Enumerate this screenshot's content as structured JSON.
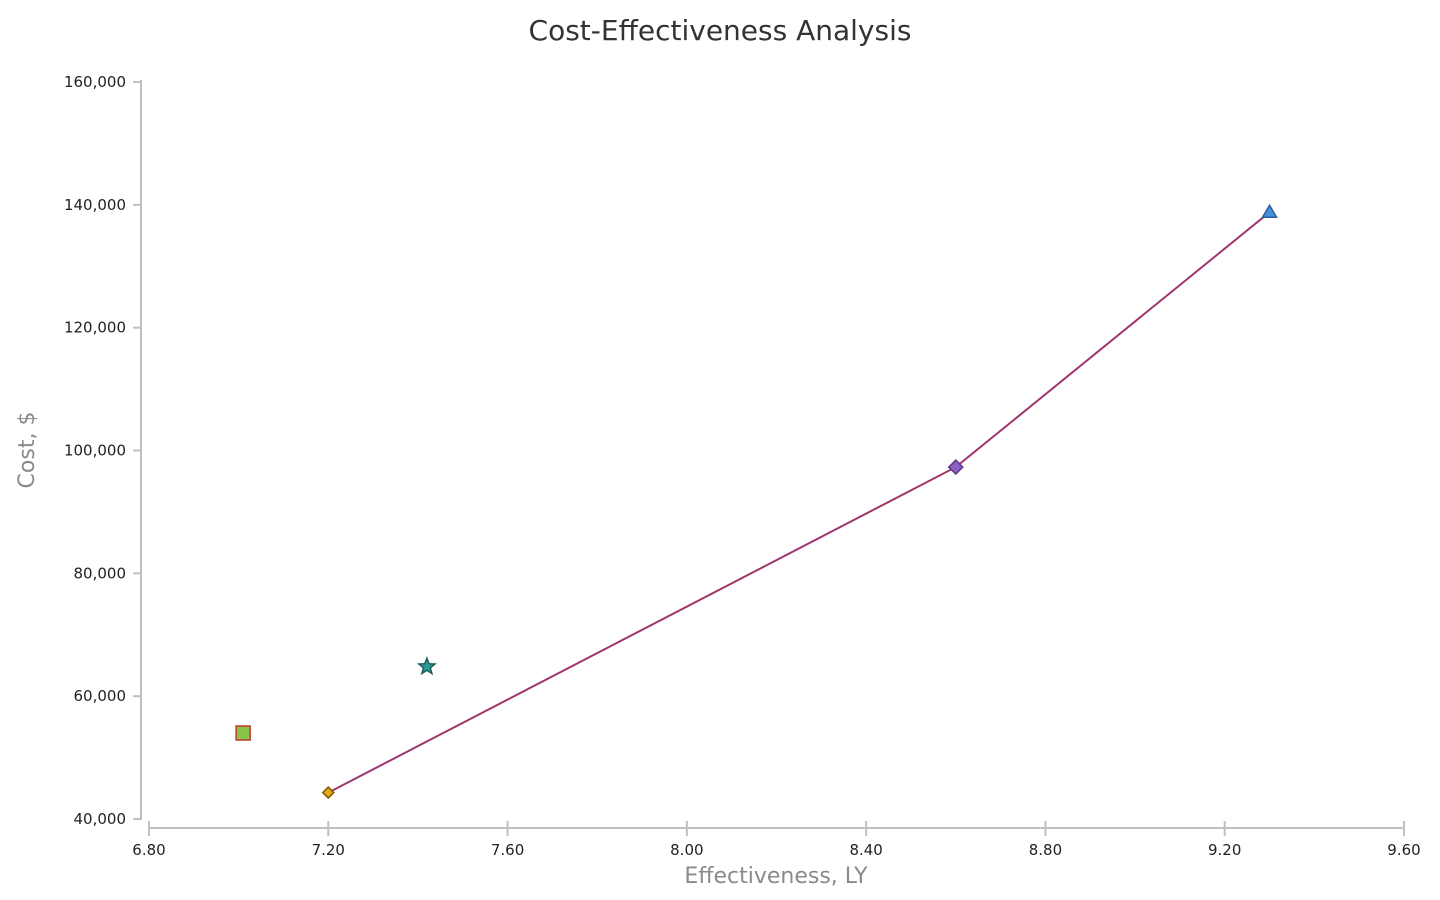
{
  "chart_data": {
    "type": "scatter",
    "title": "Cost-Effectiveness Analysis",
    "xlabel": "Effectiveness, LY",
    "ylabel": "Cost, $",
    "xlim": [
      6.8,
      9.6
    ],
    "ylim": [
      40000,
      160000
    ],
    "x_ticks": [
      "6.80",
      "7.20",
      "7.60",
      "8.00",
      "8.40",
      "8.80",
      "9.20",
      "9.60"
    ],
    "y_ticks": [
      "40,000",
      "60,000",
      "80,000",
      "100,000",
      "120,000",
      "140,000",
      "160,000"
    ],
    "grid": false,
    "legend": "none",
    "points": [
      {
        "x": 7.01,
        "y": 54000,
        "marker": "square",
        "fill": "#8bc34a",
        "stroke": "#c0392b"
      },
      {
        "x": 7.01,
        "y": 54000,
        "marker": "circle",
        "fill": "#8bc34a",
        "stroke": "#8bc34a"
      },
      {
        "x": 7.2,
        "y": 44300,
        "marker": "diamond",
        "fill": "#e6a817",
        "stroke": "#7a5a00"
      },
      {
        "x": 7.42,
        "y": 64800,
        "marker": "star",
        "fill": "#2a9d9a",
        "stroke": "#1c5f5d"
      },
      {
        "x": 8.6,
        "y": 97300,
        "marker": "diamond",
        "fill": "#8e5fc2",
        "stroke": "#5a3a80"
      },
      {
        "x": 9.3,
        "y": 138800,
        "marker": "triangle",
        "fill": "#4a90d9",
        "stroke": "#2a5fa0"
      }
    ],
    "frontier": {
      "color": "#a0356e",
      "x": [
        7.2,
        8.6,
        9.3
      ],
      "y": [
        44300,
        97300,
        138800
      ]
    }
  }
}
